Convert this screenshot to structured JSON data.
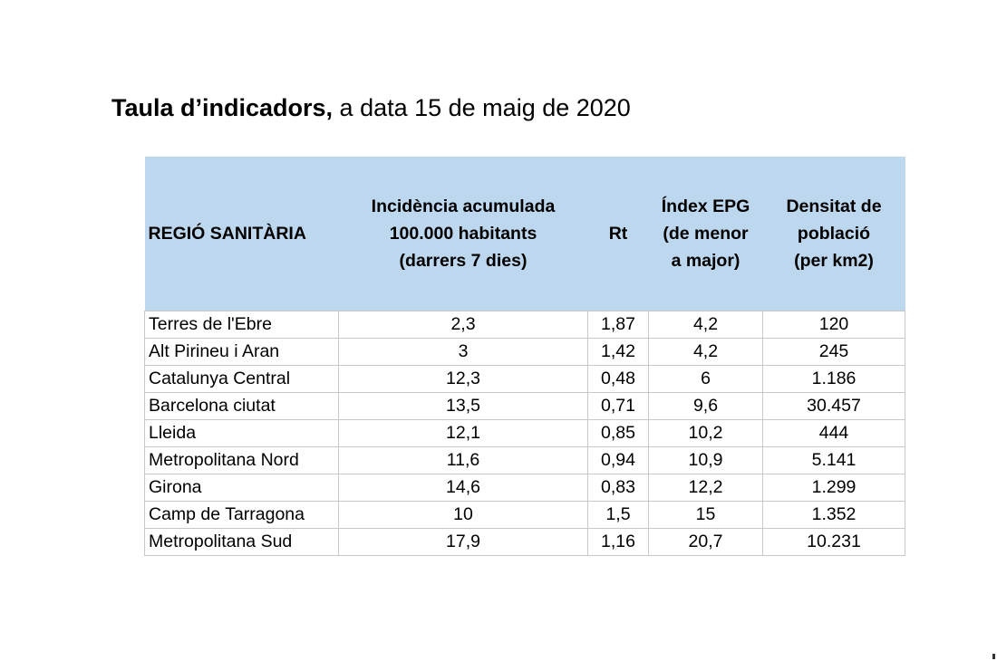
{
  "title": {
    "bold": "Taula d’indicadors,",
    "rest": " a data 15 de maig de 2020"
  },
  "table": {
    "headers": [
      [
        "REGIÓ SANITÀRIA"
      ],
      [
        "Incidència acumulada",
        "100.000 habitants",
        "(darrers 7 dies)"
      ],
      [
        "Rt"
      ],
      [
        "Índex EPG",
        "(de menor",
        "a major)"
      ],
      [
        "Densitat de",
        "població",
        "(per km2)"
      ]
    ],
    "rows": [
      [
        "Terres de l'Ebre",
        "2,3",
        "1,87",
        "4,2",
        "120"
      ],
      [
        "Alt Pirineu i Aran",
        "3",
        "1,42",
        "4,2",
        "245"
      ],
      [
        "Catalunya Central",
        "12,3",
        "0,48",
        "6",
        "1.186"
      ],
      [
        "Barcelona ciutat",
        "13,5",
        "0,71",
        "9,6",
        "30.457"
      ],
      [
        "Lleida",
        "12,1",
        "0,85",
        "10,2",
        "444"
      ],
      [
        "Metropolitana Nord",
        "11,6",
        "0,94",
        "10,9",
        "5.141"
      ],
      [
        "Girona",
        "14,6",
        "0,83",
        "12,2",
        "1.299"
      ],
      [
        "Camp de Tarragona",
        "10",
        "1,5",
        "15",
        "1.352"
      ],
      [
        "Metropolitana Sud",
        "17,9",
        "1,16",
        "20,7",
        "10.231"
      ]
    ]
  },
  "colors": {
    "header_background": "#bdd7ee",
    "grid_lines": "#c8c8c8"
  }
}
